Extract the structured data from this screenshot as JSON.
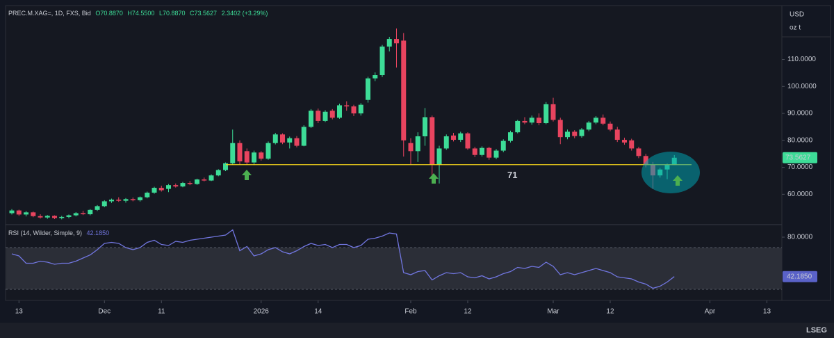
{
  "header": {
    "title": "PREC.M.XAG=, 1D, FXS, Bid",
    "ohlc_legend": [
      "O70.8870",
      "H74.5500",
      "L70.8870",
      "C73.5627",
      "2.3402 (+3.29%)"
    ],
    "units": [
      "USD",
      "oz t"
    ]
  },
  "footer": {
    "logo": "LSEG"
  },
  "chart_data": [
    {
      "type": "candlestick",
      "xlim": [
        -0.88,
        108.1
      ],
      "xticks": [
        {
          "value": 1,
          "label": "13"
        },
        {
          "value": 13,
          "label": "Dec"
        },
        {
          "value": 21,
          "label": "11"
        },
        {
          "value": 35,
          "label": "2026"
        },
        {
          "value": 43,
          "label": "14"
        },
        {
          "value": 56,
          "label": "Feb"
        },
        {
          "value": 64,
          "label": "12"
        },
        {
          "value": 76,
          "label": "Mar"
        },
        {
          "value": 84,
          "label": "12"
        },
        {
          "value": 98,
          "label": "Apr"
        },
        {
          "value": 106,
          "label": "13"
        }
      ],
      "ylim": [
        49,
        130
      ],
      "yticks": [
        {
          "value": 60,
          "label": "60.0000"
        },
        {
          "value": 70,
          "label": "70.0000"
        },
        {
          "value": 80,
          "label": "80.0000"
        },
        {
          "value": 90,
          "label": "90.0000"
        },
        {
          "value": 100,
          "label": "100.0000"
        },
        {
          "value": 110,
          "label": "110.0000"
        }
      ],
      "series": [
        {
          "up_color": "#3ddc97",
          "down_color": "#e8445f",
          "price_label": "73.5627",
          "open": [
            53.0,
            54.0,
            52.5,
            53.3,
            51.9,
            51.4,
            52.0,
            51.2,
            51.6,
            52.2,
            53.0,
            52.6,
            54.2,
            55.6,
            57.4,
            58.0,
            57.6,
            58.2,
            57.8,
            58.9,
            60.6,
            62.4,
            62.0,
            63.4,
            62.9,
            64.2,
            63.8,
            65.5,
            65.1,
            67.0,
            69.0,
            71.5,
            79.0,
            76.0,
            71.8,
            75.5,
            73.2,
            79.0,
            82.2,
            79.2,
            80.8,
            78.0,
            85.0,
            91.0,
            87.2,
            91.0,
            88.4,
            93.0,
            92.6,
            90.0,
            95.0,
            103.0,
            104.2,
            114.8,
            117.6,
            117.0,
            79.0,
            76.0,
            81.5,
            88.6,
            71.0,
            77.0,
            81.8,
            80.2,
            82.6,
            77.0,
            74.6,
            77.2,
            73.6,
            76.2,
            79.8,
            83.0,
            87.2,
            86.6,
            88.4,
            86.4,
            93.4,
            87.6,
            81.2,
            83.2,
            81.6,
            84.0,
            86.6,
            88.4,
            86.2,
            84.0,
            80.2,
            80.0,
            77.0,
            74.2,
            71.0,
            67.0,
            69.2,
            70.887
          ],
          "high": [
            54.5,
            54.3,
            53.8,
            53.6,
            52.6,
            52.3,
            52.2,
            52.0,
            52.5,
            53.4,
            53.9,
            54.5,
            56.0,
            57.8,
            58.4,
            58.9,
            58.6,
            58.8,
            59.2,
            61.0,
            62.8,
            63.2,
            63.8,
            64.0,
            64.6,
            64.9,
            65.8,
            66.2,
            67.4,
            69.3,
            71.8,
            84.0,
            80.0,
            77.0,
            76.2,
            76.0,
            79.6,
            82.8,
            82.6,
            81.4,
            81.6,
            85.6,
            91.6,
            91.8,
            91.2,
            91.6,
            93.6,
            94.5,
            93.2,
            93.8,
            103.6,
            105.2,
            115.4,
            118.4,
            121.5,
            119.8,
            80.8,
            83.0,
            92.0,
            89.2,
            78.0,
            82.2,
            82.8,
            83.2,
            83.0,
            77.6,
            77.8,
            77.6,
            76.8,
            80.4,
            83.6,
            87.6,
            88.6,
            89.2,
            90.0,
            94.2,
            95.8,
            88.4,
            84.0,
            83.8,
            84.6,
            87.2,
            89.0,
            89.6,
            87.0,
            85.0,
            81.0,
            80.6,
            77.6,
            75.0,
            72.0,
            69.8,
            71.4,
            74.55
          ],
          "low": [
            52.5,
            52.0,
            51.8,
            51.5,
            51.0,
            50.9,
            50.8,
            50.7,
            51.1,
            51.8,
            52.3,
            52.2,
            53.8,
            55.2,
            56.8,
            57.2,
            56.9,
            57.4,
            57.3,
            58.5,
            60.2,
            61.0,
            60.8,
            62.5,
            62.6,
            63.4,
            63.5,
            64.8,
            64.9,
            66.7,
            68.6,
            71.0,
            71.0,
            71.0,
            70.8,
            72.5,
            72.8,
            78.5,
            78.6,
            77.0,
            77.4,
            77.8,
            84.6,
            86.4,
            86.8,
            87.8,
            88.0,
            91.0,
            89.0,
            89.2,
            94.0,
            102.0,
            103.5,
            113.0,
            107.0,
            74.0,
            71.0,
            72.0,
            78.0,
            64.0,
            64.0,
            76.5,
            79.6,
            79.4,
            76.5,
            73.8,
            74.0,
            72.8,
            73.0,
            75.6,
            79.2,
            82.6,
            86.0,
            85.8,
            85.6,
            86.0,
            87.0,
            78.6,
            80.4,
            80.8,
            81.0,
            83.4,
            86.0,
            85.6,
            83.4,
            79.4,
            78.4,
            76.2,
            73.4,
            70.0,
            62.0,
            66.2,
            65.6,
            70.887
          ],
          "close": [
            54.0,
            52.5,
            53.3,
            51.9,
            51.4,
            52.0,
            51.2,
            51.6,
            52.2,
            53.0,
            52.6,
            54.2,
            55.6,
            57.4,
            58.0,
            57.6,
            58.2,
            57.8,
            58.9,
            60.6,
            62.4,
            61.5,
            63.4,
            62.9,
            64.2,
            63.8,
            65.5,
            65.1,
            67.0,
            69.0,
            71.5,
            79.0,
            72.2,
            71.8,
            75.5,
            73.2,
            79.0,
            82.2,
            79.2,
            80.8,
            78.0,
            85.0,
            91.0,
            87.2,
            90.6,
            88.4,
            93.0,
            92.6,
            90.0,
            93.2,
            103.0,
            104.2,
            114.8,
            117.6,
            116.0,
            80.0,
            76.0,
            81.5,
            88.6,
            71.0,
            77.0,
            81.5,
            80.2,
            82.6,
            77.0,
            74.6,
            77.2,
            73.6,
            76.2,
            79.8,
            83.0,
            87.2,
            86.6,
            88.4,
            86.4,
            93.4,
            87.6,
            81.2,
            83.2,
            81.6,
            84.0,
            86.6,
            88.4,
            86.2,
            84.0,
            80.2,
            79.2,
            77.0,
            74.2,
            71.0,
            67.0,
            69.2,
            70.887,
            73.5627
          ]
        }
      ],
      "annotations": [
        {
          "value": 71,
          "color": "#f2d21b"
        }
      ]
    },
    {
      "type": "line",
      "title": "RSI (14, Wilder, Simple, 9)",
      "ylim": [
        19.33,
        90
      ],
      "yticks": [
        {
          "value": 80,
          "label": "80.0000"
        }
      ],
      "bands": [
        30,
        70
      ],
      "band_color": "#2b2e37",
      "series": [
        {
          "color": "#7176e0",
          "value_label": "42.1850",
          "values": [
            64,
            62,
            55,
            55,
            57,
            56,
            54,
            55,
            55,
            57,
            60,
            63,
            68,
            74,
            75,
            74,
            70,
            68,
            70,
            75,
            77,
            73,
            72,
            76,
            75,
            77,
            78,
            79,
            80,
            81,
            82,
            87,
            67,
            71,
            62,
            64,
            68,
            70,
            66,
            64,
            67,
            71,
            74,
            72,
            73,
            70,
            73,
            73,
            70,
            72,
            78,
            79,
            81,
            84,
            83,
            46,
            44,
            47,
            48,
            39,
            43,
            46,
            45,
            46,
            42,
            41,
            43,
            40,
            42,
            45,
            47,
            51,
            50,
            52,
            51,
            56,
            52,
            44,
            46,
            44,
            46,
            48,
            50,
            48,
            46,
            42,
            41,
            40,
            37,
            35,
            31,
            33,
            37,
            42.185
          ]
        }
      ]
    }
  ]
}
